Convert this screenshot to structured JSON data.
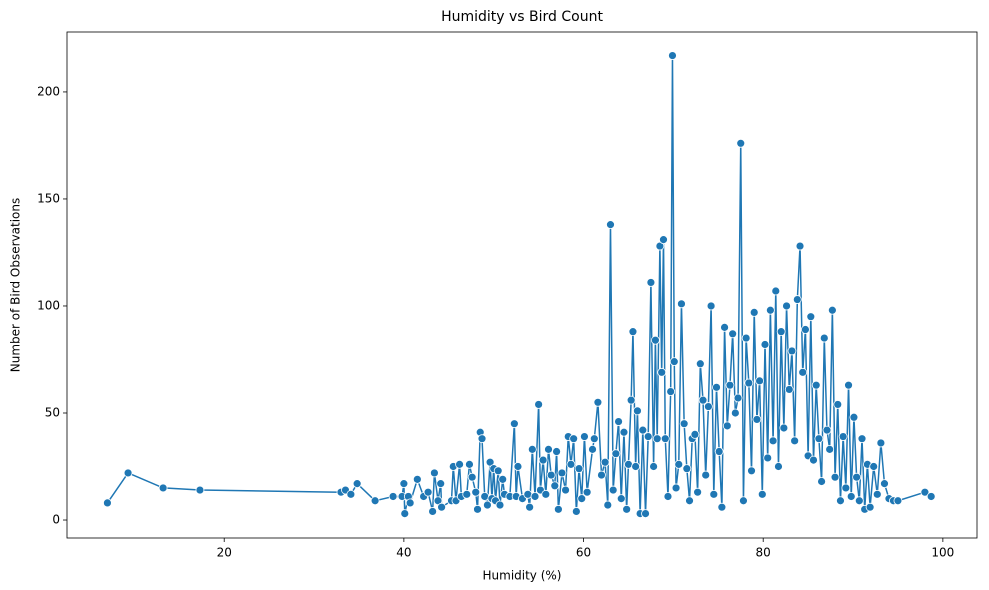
{
  "chart_data": {
    "type": "line",
    "title": "Humidity vs Bird Count",
    "x_label": "Humidity (%)",
    "y_label": "Number of Bird Observations",
    "xlim": [
      2.5,
      103.8
    ],
    "ylim": [
      -8.4,
      228
    ],
    "xticks": [
      20,
      40,
      60,
      80,
      100
    ],
    "yticks": [
      0,
      50,
      100,
      150,
      200
    ],
    "grid": false,
    "series": [
      {
        "name": "Bird Count",
        "color": "#1f77b4",
        "x": [
          7,
          9.3,
          13.2,
          17.3,
          33,
          33.5,
          34.1,
          34.8,
          36.8,
          38.8,
          39.8,
          40,
          40.1,
          40.5,
          40.7,
          41.5,
          42.2,
          42.7,
          43.2,
          43.4,
          43.8,
          44.1,
          44.2,
          45.3,
          45.5,
          45.8,
          46.2,
          46.4,
          47,
          47.3,
          47.6,
          48,
          48.2,
          48.5,
          48.7,
          49,
          49.3,
          49.6,
          49.8,
          50,
          50.2,
          50.5,
          50.7,
          51,
          51.2,
          51.8,
          52.3,
          52.5,
          52.7,
          53.2,
          53.8,
          54,
          54.3,
          54.6,
          55,
          55.2,
          55.5,
          55.8,
          56.1,
          56.4,
          56.8,
          57,
          57.2,
          57.6,
          58,
          58.3,
          58.6,
          58.9,
          59.2,
          59.5,
          59.8,
          60.1,
          60.4,
          61,
          61.2,
          61.6,
          62,
          62.4,
          62.7,
          63,
          63.3,
          63.6,
          63.9,
          64.2,
          64.5,
          64.8,
          65,
          65.3,
          65.5,
          65.8,
          66,
          66.3,
          66.6,
          66.9,
          67.2,
          67.5,
          67.8,
          68,
          68.2,
          68.5,
          68.7,
          68.9,
          69.1,
          69.4,
          69.7,
          69.9,
          70.1,
          70.3,
          70.6,
          70.9,
          71.2,
          71.5,
          71.8,
          72.1,
          72.4,
          72.7,
          73,
          73.3,
          73.6,
          73.9,
          74.2,
          74.5,
          74.8,
          75.1,
          75.4,
          75.7,
          76,
          76.3,
          76.6,
          76.9,
          77.2,
          77.5,
          77.8,
          78.1,
          78.4,
          78.7,
          79,
          79.3,
          79.6,
          79.9,
          80.2,
          80.5,
          80.8,
          81.1,
          81.4,
          81.7,
          82,
          82.3,
          82.6,
          82.9,
          83.2,
          83.5,
          83.8,
          84.1,
          84.4,
          84.7,
          85,
          85.3,
          85.6,
          85.9,
          86.2,
          86.5,
          86.8,
          87.1,
          87.4,
          87.7,
          88,
          88.3,
          88.6,
          88.9,
          89.2,
          89.5,
          89.8,
          90.1,
          90.4,
          90.7,
          91,
          91.3,
          91.6,
          91.9,
          92.3,
          92.7,
          93.1,
          93.5,
          94,
          94.5,
          95,
          98,
          98.7
        ],
        "values": [
          8,
          22,
          15,
          14,
          13,
          14,
          12,
          17,
          9,
          11,
          11,
          17,
          3,
          11,
          8,
          19,
          11,
          13,
          4,
          22,
          9,
          17,
          6,
          9,
          25,
          9,
          26,
          11,
          12,
          26,
          20,
          13,
          5,
          41,
          38,
          11,
          7,
          27,
          10,
          24,
          9,
          23,
          7,
          19,
          12,
          11,
          45,
          11,
          25,
          10,
          12,
          6,
          33,
          11,
          54,
          14,
          28,
          12,
          33,
          21,
          16,
          32,
          5,
          22,
          14,
          39,
          26,
          38,
          4,
          24,
          10,
          39,
          13,
          33,
          38,
          55,
          21,
          27,
          7,
          138,
          14,
          31,
          46,
          10,
          41,
          5,
          26,
          56,
          88,
          25,
          51,
          3,
          42,
          3,
          39,
          111,
          25,
          84,
          38,
          128,
          69,
          131,
          38,
          11,
          60,
          217,
          74,
          15,
          26,
          101,
          45,
          24,
          9,
          38,
          40,
          13,
          73,
          56,
          21,
          53,
          100,
          12,
          62,
          32,
          6,
          90,
          44,
          63,
          87,
          50,
          57,
          176,
          9,
          85,
          64,
          23,
          97,
          47,
          65,
          12,
          82,
          29,
          98,
          37,
          107,
          25,
          88,
          43,
          100,
          61,
          79,
          37,
          103,
          128,
          69,
          89,
          30,
          95,
          28,
          63,
          38,
          18,
          85,
          42,
          33,
          98,
          20,
          54,
          9,
          39,
          15,
          63,
          11,
          48,
          20,
          9,
          38,
          5,
          26,
          6,
          25,
          12,
          36,
          17,
          10,
          9,
          9,
          13,
          11
        ]
      }
    ]
  }
}
